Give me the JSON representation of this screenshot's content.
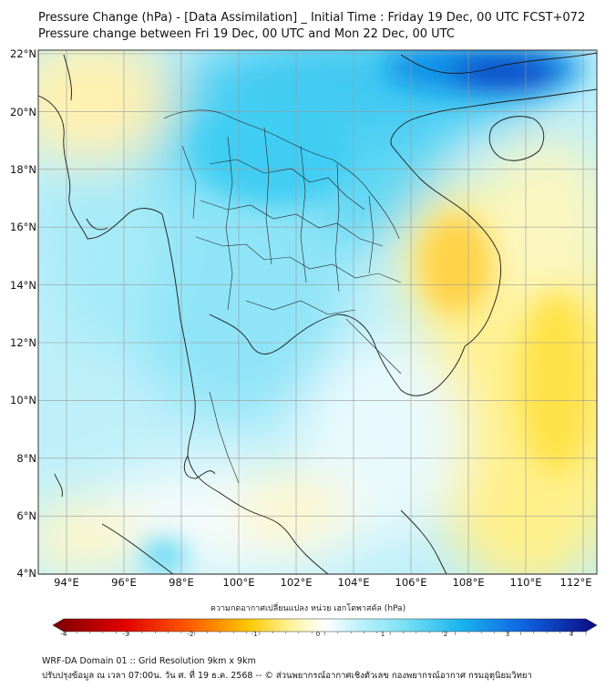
{
  "title": {
    "line1": "Pressure Change (hPa) - [Data Assimilation] _ Initial Time : Friday 19 Dec, 00 UTC FCST+072",
    "line2": "Pressure change between Fri 19 Dec, 00 UTC and Mon 22 Dec, 00 UTC"
  },
  "axes": {
    "lat_labels": [
      "22°N",
      "20°N",
      "18°N",
      "16°N",
      "14°N",
      "12°N",
      "10°N",
      "8°N",
      "6°N",
      "4°N"
    ],
    "lon_labels": [
      "94°E",
      "96°E",
      "98°E",
      "100°E",
      "102°E",
      "104°E",
      "106°E",
      "108°E",
      "110°E",
      "112°E"
    ]
  },
  "colorbar": {
    "title": "ความกดอากาศเปลี่ยนแปลง หน่วย เฮกโตพาสคัล (hPa)",
    "ticks": [
      "-4",
      "-3",
      "-2",
      "-1",
      "0",
      "1",
      "2",
      "3",
      "4"
    ],
    "min": -4,
    "max": 4,
    "colors": {
      "strong_negative": "#7a0000",
      "negative": "#ff1a00",
      "weak_negative": "#ffc800",
      "neutral": "#ffffff",
      "weak_positive": "#7fe3f5",
      "positive": "#19b4ee",
      "strong_positive": "#1020b0"
    }
  },
  "footer": {
    "line1": "WRF-DA Domain 01 :: Grid Resolution 9km x 9km",
    "line2": "ปรับปรุงข้อมูล ณ เวลา 07:00น. วัน ศ. ที่ 19 ธ.ค. 2568 -- © ส่วนพยากรณ์อากาศเชิงตัวเลข กองพยากรณ์อากาศ กรมอุตุนิยมวิทยา"
  },
  "map": {
    "extent": {
      "lon_min": 93,
      "lon_max": 112.5,
      "lat_min": 4,
      "lat_max": 22.2
    },
    "icons": [
      "coastline-outline",
      "province-borders"
    ]
  }
}
